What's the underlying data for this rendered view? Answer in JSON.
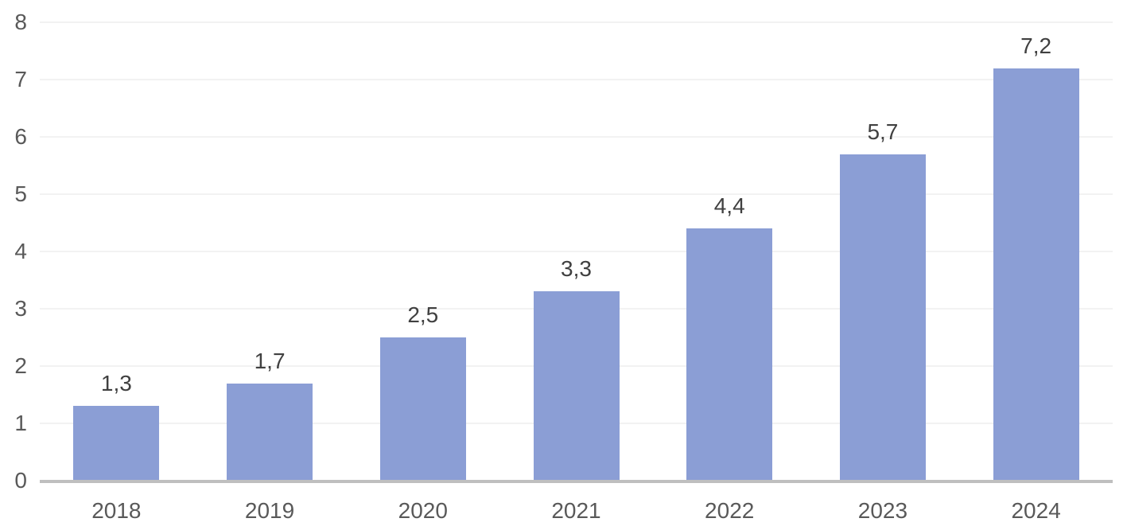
{
  "chart_data": {
    "type": "bar",
    "categories": [
      "2018",
      "2019",
      "2020",
      "2021",
      "2022",
      "2023",
      "2024"
    ],
    "values": [
      1.3,
      1.7,
      2.5,
      3.3,
      4.4,
      5.7,
      7.2
    ],
    "data_labels": [
      "1,3",
      "1,7",
      "2,5",
      "3,3",
      "4,4",
      "5,7",
      "7,2"
    ],
    "title": "",
    "xlabel": "",
    "ylabel": "",
    "ylim": [
      0,
      8
    ],
    "y_tick_labels": [
      "0",
      "1",
      "2",
      "3",
      "4",
      "5",
      "6",
      "7",
      "8"
    ],
    "grid": "horizontal gridlines on",
    "legend": "none",
    "colors": {
      "bar_fill": "#8B9ED5",
      "gridline": "#F2F2F2",
      "axis_line": "#BFBFBF",
      "axis_tick_label": "#595959",
      "data_label": "#404040",
      "background": "#FFFFFF"
    }
  }
}
